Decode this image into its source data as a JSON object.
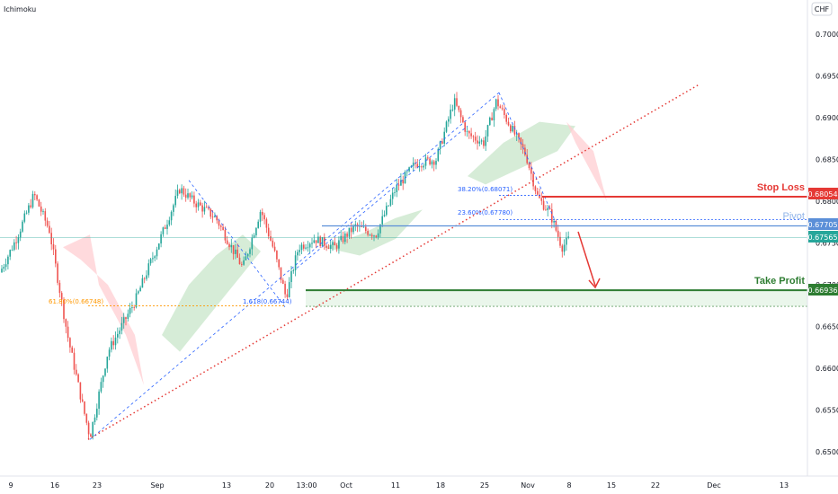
{
  "indicator_name": "Ichimoku",
  "currency": "CHF",
  "colors": {
    "up": "#26a69a",
    "down": "#ef5350",
    "cloud_green": "#c8e6c9",
    "cloud_red": "#ffcdd2",
    "fib_blue": "#2962ff",
    "fib_orange": "#ff9800",
    "trend_red": "#e53935",
    "stop_loss": "#e53935",
    "take_profit": "#2e7d32",
    "pivot": "#90b4e8"
  },
  "annotations": {
    "stop_loss_label": "Stop Loss",
    "take_profit_label": "Take Profit",
    "pivot_label": "Pivot",
    "fib_38": "38.20%(0.68071)",
    "fib_23": "23.60%(0.67780)",
    "fib_161": "1.618(0.66744)",
    "fib_61": "61.80%(0.66748)"
  },
  "chart_data": {
    "type": "candlestick",
    "ylim": [
      0.6482,
      0.703
    ],
    "y_ticks": [
      "0.70000",
      "0.69500",
      "0.69000",
      "0.68500",
      "0.68000",
      "0.67500",
      "0.67000",
      "0.66500",
      "0.66000",
      "0.65500",
      "0.65000"
    ],
    "x_ticks": [
      "9",
      "16",
      "23",
      "Sep",
      "13",
      "20",
      "13:00",
      "Oct",
      "11",
      "18",
      "25",
      "Nov",
      "8",
      "15",
      "22",
      "Dec",
      "13"
    ],
    "price_badges": {
      "stop_loss": "0.68054",
      "pivot": "0.67705",
      "current": "0.67565",
      "take_profit": "0.66936"
    },
    "key_points": [
      {
        "x": "Aug 21",
        "y": 0.6515,
        "label": "swing low"
      },
      {
        "x": "Sep 3",
        "y": 0.6822,
        "label": "swing high"
      },
      {
        "x": "Sep 21",
        "y": 0.6675,
        "label": "swing low"
      },
      {
        "x": "Oct 20",
        "y": 0.693,
        "label": "swing high"
      },
      {
        "x": "Nov 9",
        "y": 0.6755,
        "label": "last close"
      }
    ],
    "levels": {
      "stop_loss": 0.68054,
      "pivot": 0.67705,
      "take_profit": 0.66936,
      "fib_38": 0.68071,
      "fib_23": 0.6778,
      "fib_161": 0.66744,
      "fib_61": 0.66748
    }
  }
}
